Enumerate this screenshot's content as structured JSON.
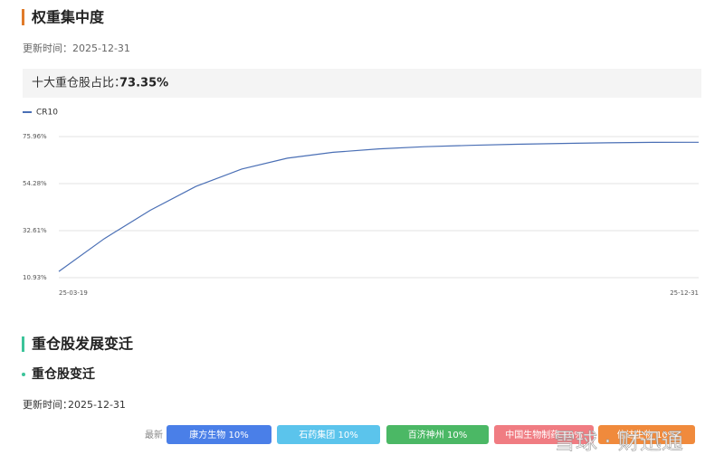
{
  "section1": {
    "title": "权重集中度",
    "update_label": "更新时间：",
    "update_date": "2025-12-31",
    "stat_label": "十大重仓股占比：",
    "stat_value": "73.35%"
  },
  "chart_data": {
    "type": "line",
    "categories": [
      "25-03-19",
      null,
      null,
      null,
      null,
      null,
      null,
      null,
      null,
      null,
      null,
      null,
      null,
      null,
      "25-12-31"
    ],
    "series": [
      {
        "name": "CR10",
        "color": "#4a6fb5",
        "values": [
          13.8,
          29,
          42,
          53,
          61,
          66,
          68.7,
          70.3,
          71.3,
          71.9,
          72.4,
          72.8,
          73.1,
          73.3,
          73.35
        ]
      }
    ],
    "ylim": [
      10.93,
      75.96
    ],
    "yticks": [
      {
        "value": 10.93,
        "label": "10.93%"
      },
      {
        "value": 32.61,
        "label": "32.61%"
      },
      {
        "value": 54.28,
        "label": "54.28%"
      },
      {
        "value": 75.96,
        "label": "75.96%"
      }
    ],
    "grid": true
  },
  "section2": {
    "title": "重仓股发展变迁",
    "subtitle": "重仓股变迁",
    "update_label": "更新时间：",
    "update_date": "2025-12-31",
    "row_label": "最新",
    "tags": [
      "康方生物  10%",
      "石药集团  10%",
      "百济神州  10%",
      "中国生物制药  10%",
      "信达生物  10%"
    ]
  },
  "watermark": "雪球 · 财迅通"
}
